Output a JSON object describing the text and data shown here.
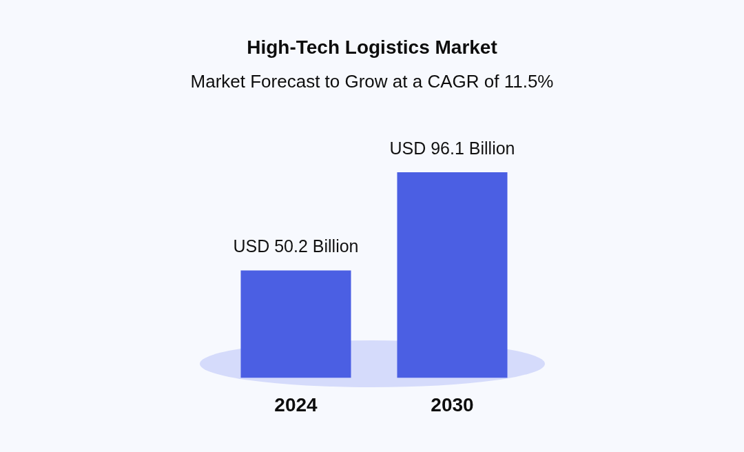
{
  "chart_data": {
    "type": "bar",
    "title": "High-Tech Logistics Market",
    "subtitle": "Market Forecast to Grow at a CAGR of 11.5%",
    "categories": [
      "2024",
      "2030"
    ],
    "values": [
      50.2,
      96.1
    ],
    "color": "#4b5fe3",
    "value_labels": [
      "USD 50.2 Billion",
      "USD 96.1 Billion"
    ]
  }
}
